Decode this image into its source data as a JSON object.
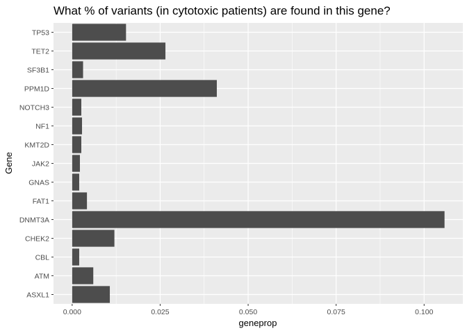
{
  "chart_data": {
    "type": "bar",
    "orientation": "horizontal",
    "title": "What % of variants (in cytotoxic patients) are found in this gene?",
    "xlabel": "geneprop",
    "ylabel": "Gene",
    "categories": [
      "TP53",
      "TET2",
      "SF3B1",
      "PPM1D",
      "NOTCH3",
      "NF1",
      "KMT2D",
      "JAK2",
      "GNAS",
      "FAT1",
      "DNMT3A",
      "CHEK2",
      "CBL",
      "ATM",
      "ASXL1"
    ],
    "values": [
      0.0153,
      0.0265,
      0.0031,
      0.0411,
      0.0026,
      0.0028,
      0.0026,
      0.0022,
      0.002,
      0.0042,
      0.1058,
      0.012,
      0.002,
      0.006,
      0.0107
    ],
    "xlim": [
      -0.0053,
      0.111
    ],
    "xticks": [
      0.0,
      0.025,
      0.05,
      0.075,
      0.1
    ],
    "xtick_labels": [
      "0.000",
      "0.025",
      "0.050",
      "0.075",
      "0.100"
    ],
    "grid": true,
    "bar_color": "#4d4d4d",
    "panel_color": "#ebebeb",
    "grid_color": "#ffffff"
  }
}
